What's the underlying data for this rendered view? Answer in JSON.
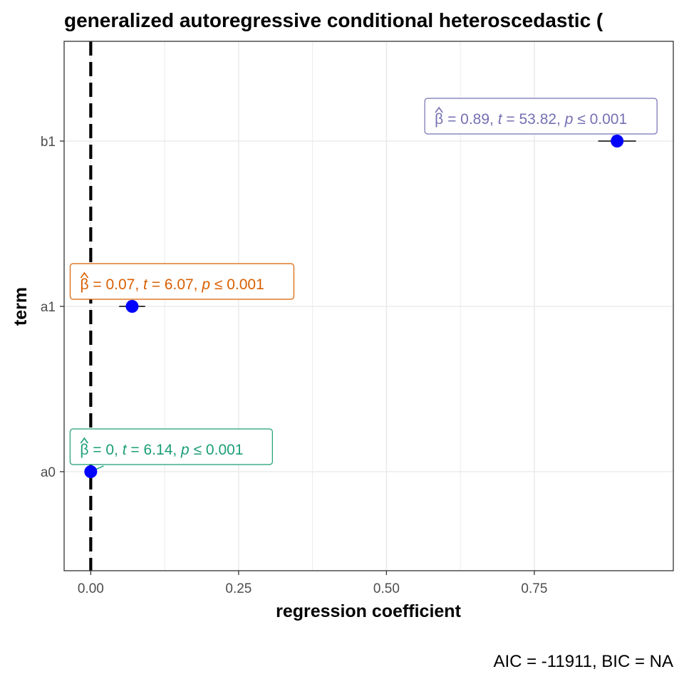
{
  "chart_data": {
    "type": "scatter",
    "title": "generalized autoregressive conditional heteroscedastic (",
    "xlabel": "regression coefficient",
    "ylabel": "term",
    "caption": "AIC = -11911, BIC = NA",
    "xlim": [
      -0.045,
      0.985
    ],
    "x_ticks": [
      0.0,
      0.25,
      0.5,
      0.75
    ],
    "x_tick_labels": [
      "0.00",
      "0.25",
      "0.50",
      "0.75"
    ],
    "categories": [
      "a0",
      "a1",
      "b1"
    ],
    "reference_line_x": 0,
    "grid": true,
    "points": [
      {
        "term": "a0",
        "estimate": 0.0,
        "conf_low": 0.0,
        "conf_high": 0.0,
        "label": {
          "beta": "0",
          "t": "6.14",
          "p": "0.001"
        },
        "color": "#1b9e77"
      },
      {
        "term": "a1",
        "estimate": 0.07,
        "conf_low": 0.048,
        "conf_high": 0.092,
        "label": {
          "beta": "0.07",
          "t": "6.07",
          "p": "0.001"
        },
        "color": "#d95f02"
      },
      {
        "term": "b1",
        "estimate": 0.89,
        "conf_low": 0.858,
        "conf_high": 0.922,
        "label": {
          "beta": "0.89",
          "t": "53.82",
          "p": "0.001"
        },
        "color": "#7570b3"
      }
    ]
  },
  "colors": {
    "point": "#0000ff",
    "grid": "#ebebeb",
    "panel_border": "#333333",
    "reference_line": "#000000"
  }
}
